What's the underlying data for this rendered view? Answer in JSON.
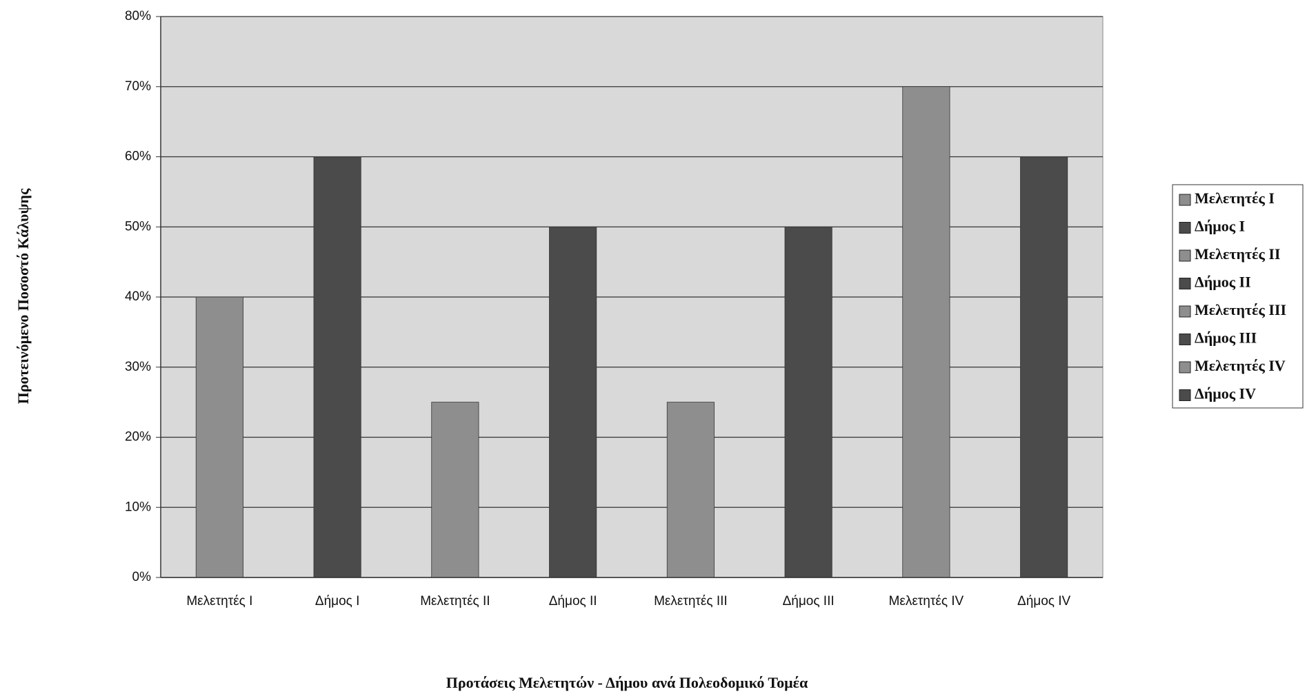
{
  "chart_data": {
    "type": "bar",
    "x_label": "Προτάσεις Μελετητών - Δήμου ανά Πολεοδομικό Τομέα",
    "y_label": "Προτεινόμενο Ποσοστό Κάλυψης",
    "categories": [
      "Μελετητές Ι",
      "Δήμος Ι",
      "Μελετητές ΙΙ",
      "Δήμος ΙΙ",
      "Μελετητές ΙΙΙ",
      "Δήμος ΙΙΙ",
      "Μελετητές ΙV",
      "Δήμος ΙV"
    ],
    "values": [
      40,
      60,
      25,
      50,
      25,
      50,
      70,
      60
    ],
    "colors": [
      "#8e8e8e",
      "#4b4b4b",
      "#8e8e8e",
      "#4b4b4b",
      "#8e8e8e",
      "#4b4b4b",
      "#8e8e8e",
      "#4b4b4b"
    ],
    "ylim": [
      0,
      80
    ],
    "yticks": [
      {
        "value": 0,
        "label": "0%"
      },
      {
        "value": 10,
        "label": "10%"
      },
      {
        "value": 20,
        "label": "20%"
      },
      {
        "value": 30,
        "label": "30%"
      },
      {
        "value": 40,
        "label": "40%"
      },
      {
        "value": 50,
        "label": "50%"
      },
      {
        "value": 60,
        "label": "60%"
      },
      {
        "value": 70,
        "label": "70%"
      },
      {
        "value": 80,
        "label": "80%"
      }
    ],
    "grid": true,
    "legend": "right"
  }
}
